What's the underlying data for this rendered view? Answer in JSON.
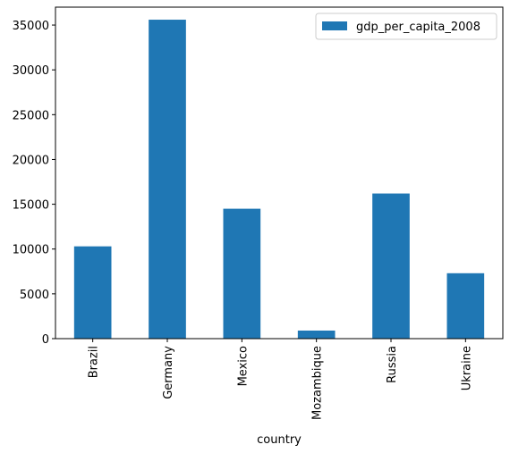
{
  "chart_data": {
    "type": "bar",
    "categories": [
      "Brazil",
      "Germany",
      "Mexico",
      "Mozambique",
      "Russia",
      "Ukraine"
    ],
    "series": [
      {
        "name": "gdp_per_capita_2008",
        "values": [
          10300,
          35600,
          14500,
          900,
          16200,
          7300
        ],
        "color": "#1f77b4"
      }
    ],
    "xlabel": "country",
    "ylabel": "",
    "ylim": [
      0,
      37000
    ],
    "yticks": [
      0,
      5000,
      10000,
      15000,
      20000,
      25000,
      30000,
      35000
    ],
    "grid": false,
    "legend": "top-right"
  }
}
